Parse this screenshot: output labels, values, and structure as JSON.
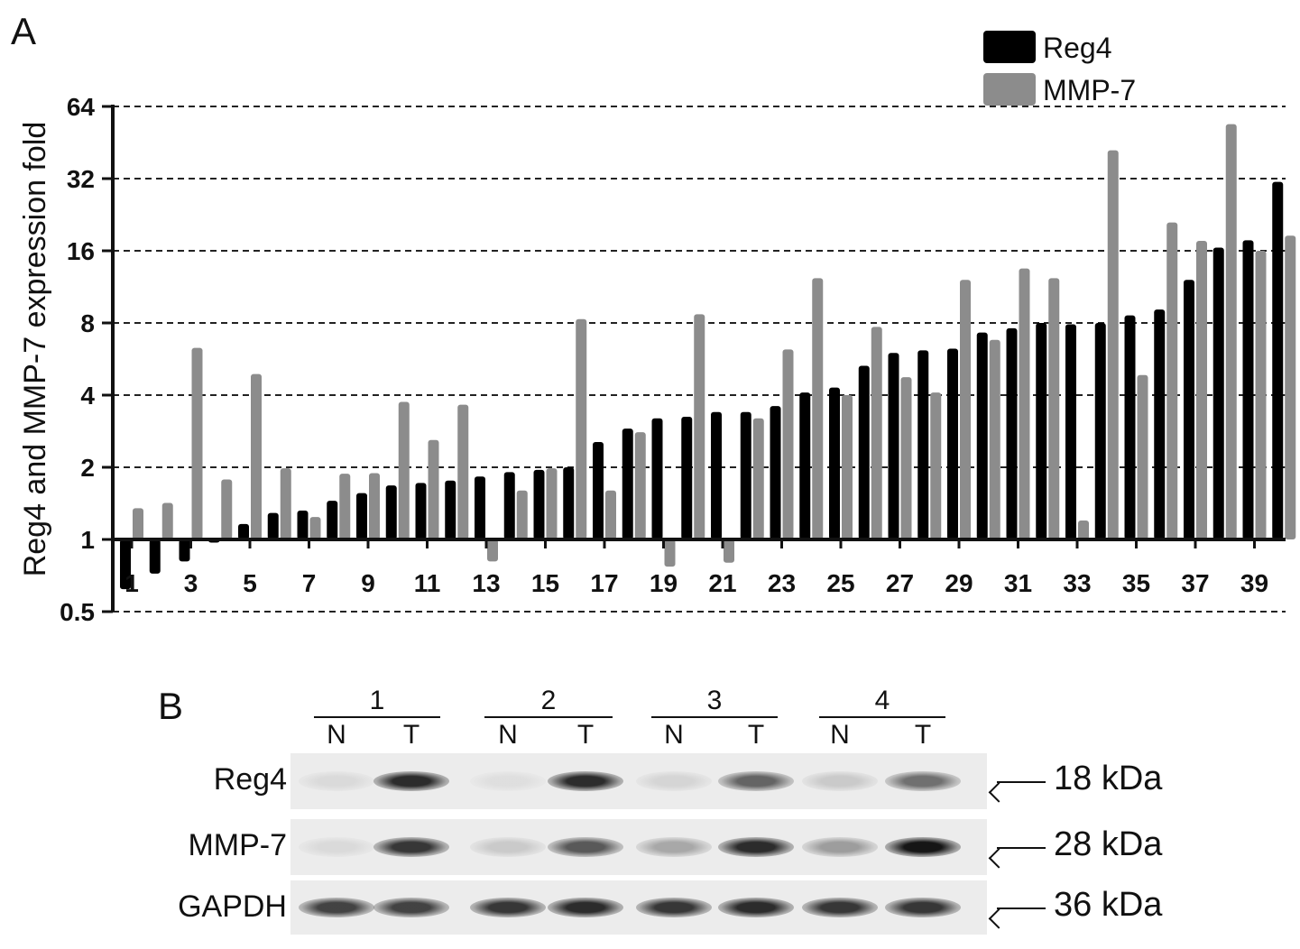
{
  "panels": {
    "a_label": "A",
    "b_label": "B"
  },
  "chart_data": {
    "type": "bar",
    "scale": "log2",
    "baseline": 1,
    "ylabel": "Reg4 and MMP-7 expression fold",
    "xlabel": "",
    "ylim": [
      0.5,
      64
    ],
    "yticks": [
      "0.5",
      "1",
      "2",
      "4",
      "8",
      "16",
      "32",
      "64"
    ],
    "ytick_values": [
      0.5,
      1,
      2,
      4,
      8,
      16,
      32,
      64
    ],
    "grid": "dashed horizontal",
    "legend_position": "top-right",
    "x": [
      1,
      2,
      3,
      4,
      5,
      6,
      7,
      8,
      9,
      10,
      11,
      12,
      13,
      14,
      15,
      16,
      17,
      18,
      19,
      20,
      21,
      22,
      23,
      24,
      25,
      26,
      27,
      28,
      29,
      30,
      31,
      32,
      33,
      34,
      35,
      36,
      37,
      38,
      39,
      40
    ],
    "xtick_labels": [
      "1",
      "3",
      "5",
      "7",
      "9",
      "11",
      "13",
      "15",
      "17",
      "19",
      "21",
      "23",
      "25",
      "27",
      "29",
      "31",
      "33",
      "35",
      "37",
      "39"
    ],
    "xtick_positions": [
      1,
      3,
      5,
      7,
      9,
      11,
      13,
      15,
      17,
      19,
      21,
      23,
      25,
      27,
      29,
      31,
      33,
      35,
      37,
      39
    ],
    "colors": {
      "Reg4": "#000000",
      "MMP-7": "#8c8c8c"
    },
    "series": [
      {
        "name": "Reg4",
        "values": [
          0.62,
          0.72,
          0.81,
          0.97,
          1.16,
          1.29,
          1.32,
          1.45,
          1.56,
          1.68,
          1.72,
          1.76,
          1.83,
          1.91,
          1.95,
          2.0,
          2.55,
          2.9,
          3.2,
          3.25,
          3.4,
          3.4,
          3.6,
          4.1,
          4.3,
          5.3,
          6.0,
          6.15,
          6.25,
          7.3,
          7.6,
          8.0,
          7.9,
          8.0,
          8.6,
          9.1,
          12.1,
          16.5,
          17.7,
          31.0
        ]
      },
      {
        "name": "MMP-7",
        "values": [
          1.35,
          1.42,
          6.3,
          1.78,
          4.9,
          1.98,
          1.24,
          1.88,
          1.89,
          3.75,
          2.6,
          3.65,
          0.81,
          1.6,
          1.98,
          8.3,
          1.6,
          2.8,
          0.77,
          8.7,
          0.8,
          3.2,
          6.2,
          12.3,
          4.0,
          7.7,
          4.75,
          4.1,
          12.1,
          6.8,
          13.5,
          12.3,
          1.2,
          42.0,
          4.85,
          21.0,
          17.6,
          54.0,
          16.0,
          18.5
        ]
      }
    ]
  },
  "blot": {
    "groups": [
      "1",
      "2",
      "3",
      "4"
    ],
    "lanes": [
      "N",
      "T",
      "N",
      "T",
      "N",
      "T",
      "N",
      "T"
    ],
    "rows": [
      {
        "label": "Reg4",
        "size": "18 kDa",
        "intensity": [
          0.08,
          0.85,
          0.06,
          0.85,
          0.1,
          0.6,
          0.15,
          0.55
        ]
      },
      {
        "label": "MMP-7",
        "size": "28 kDa",
        "intensity": [
          0.08,
          0.8,
          0.15,
          0.65,
          0.3,
          0.85,
          0.35,
          0.95
        ]
      },
      {
        "label": "GAPDH",
        "size": "36 kDa",
        "intensity": [
          0.75,
          0.75,
          0.8,
          0.85,
          0.8,
          0.85,
          0.8,
          0.8
        ]
      }
    ]
  }
}
